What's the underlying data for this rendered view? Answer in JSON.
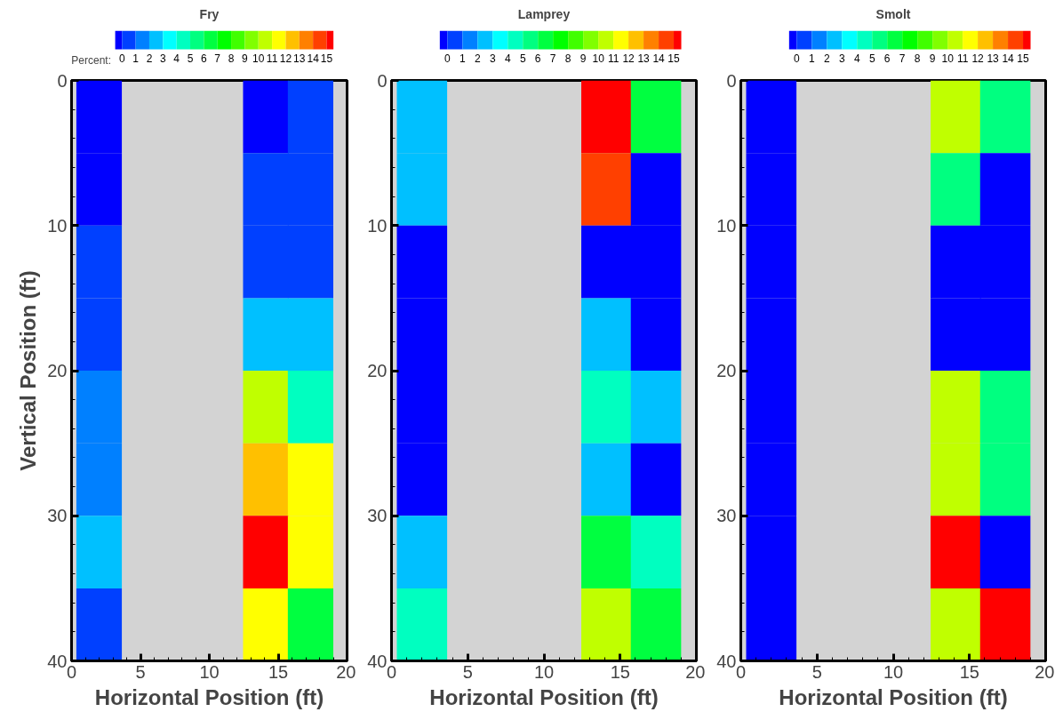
{
  "chart_data": [
    {
      "type": "heatmap",
      "title": "Fry",
      "legend_title": "Percent:",
      "xlabel": "Horizontal Position (ft)",
      "ylabel": "Vertical Position (ft)",
      "x": [
        2.0,
        8.1,
        14.1,
        17.35
      ],
      "cells": [
        [
          0,
          null,
          0,
          0.5
        ],
        [
          0,
          null,
          0.5,
          0.5
        ],
        [
          0.5,
          null,
          0.5,
          0.5
        ],
        [
          0.5,
          null,
          2.5,
          2.5
        ],
        [
          1.5,
          null,
          10.5,
          4.5
        ],
        [
          1.5,
          null,
          12.5,
          11.5
        ],
        [
          2.5,
          null,
          15,
          11.5
        ],
        [
          0.5,
          null,
          11.5,
          6.5
        ]
      ],
      "colors": [
        "#0000ff",
        "#0040ff",
        "#0080ff",
        "#00c0ff",
        "#00ffff",
        "#00ffc0",
        "#00ff80",
        "#00ff40",
        "#00ff00",
        "#40ff00",
        "#80ff00",
        "#c0ff00",
        "#ffff00",
        "#ffc000",
        "#ff8000",
        "#ff4000",
        "#ff0000"
      ],
      "clim": [
        -0.5,
        15.5
      ],
      "cticks": [
        0,
        1,
        2,
        3,
        4,
        5,
        6,
        7,
        8,
        9,
        10,
        11,
        12,
        13,
        14,
        15
      ],
      "xlim": [
        0,
        20
      ],
      "ylim": [
        40,
        0
      ],
      "xticks": [
        0,
        5,
        10,
        15,
        20
      ],
      "yticks": [
        0,
        10,
        20,
        30,
        40
      ],
      "grid": false
    },
    {
      "type": "heatmap",
      "title": "Lamprey",
      "xlabel": "Horizontal Position (ft)",
      "x": [
        2.0,
        8.1,
        14.1,
        17.35
      ],
      "cells": [
        [
          2.5,
          null,
          15,
          6.5
        ],
        [
          2.5,
          null,
          14.5,
          0
        ],
        [
          0,
          null,
          0,
          0
        ],
        [
          0,
          null,
          2.5,
          0
        ],
        [
          0,
          null,
          4.5,
          2.5
        ],
        [
          0,
          null,
          2.5,
          0
        ],
        [
          2.5,
          null,
          6.5,
          4.5
        ],
        [
          4.5,
          null,
          10.5,
          6.5
        ]
      ],
      "colors": [
        "#0000ff",
        "#0040ff",
        "#0080ff",
        "#00c0ff",
        "#00ffff",
        "#00ffc0",
        "#00ff80",
        "#00ff40",
        "#00ff00",
        "#40ff00",
        "#80ff00",
        "#c0ff00",
        "#ffff00",
        "#ffc000",
        "#ff8000",
        "#ff4000",
        "#ff0000"
      ],
      "clim": [
        -0.5,
        15.5
      ],
      "cticks": [
        0,
        1,
        2,
        3,
        4,
        5,
        6,
        7,
        8,
        9,
        10,
        11,
        12,
        13,
        14,
        15
      ],
      "xlim": [
        0,
        20
      ],
      "ylim": [
        40,
        0
      ],
      "xticks": [
        0,
        5,
        10,
        15,
        20
      ],
      "yticks": [
        0,
        10,
        20,
        30,
        40
      ],
      "grid": false
    },
    {
      "type": "heatmap",
      "title": "Smolt",
      "xlabel": "Horizontal Position (ft)",
      "x": [
        2.0,
        8.1,
        14.1,
        17.35
      ],
      "cells": [
        [
          0,
          null,
          10.5,
          5.5
        ],
        [
          0,
          null,
          5.5,
          0
        ],
        [
          0,
          null,
          0,
          0
        ],
        [
          0,
          null,
          0,
          0
        ],
        [
          0,
          null,
          10.5,
          5.5
        ],
        [
          0,
          null,
          10.5,
          5.5
        ],
        [
          0,
          null,
          15,
          0
        ],
        [
          0,
          null,
          10.5,
          15
        ]
      ],
      "colors": [
        "#0000ff",
        "#0040ff",
        "#0080ff",
        "#00c0ff",
        "#00ffff",
        "#00ffc0",
        "#00ff80",
        "#00ff40",
        "#00ff00",
        "#40ff00",
        "#80ff00",
        "#c0ff00",
        "#ffff00",
        "#ffc000",
        "#ff8000",
        "#ff4000",
        "#ff0000"
      ],
      "clim": [
        -0.5,
        15.5
      ],
      "cticks": [
        0,
        1,
        2,
        3,
        4,
        5,
        6,
        7,
        8,
        9,
        10,
        11,
        12,
        13,
        14,
        15
      ],
      "xlim": [
        0,
        20
      ],
      "ylim": [
        40,
        0
      ],
      "xticks": [
        0,
        5,
        10,
        15,
        20
      ],
      "yticks": [
        0,
        10,
        20,
        30,
        40
      ],
      "grid": false
    }
  ]
}
